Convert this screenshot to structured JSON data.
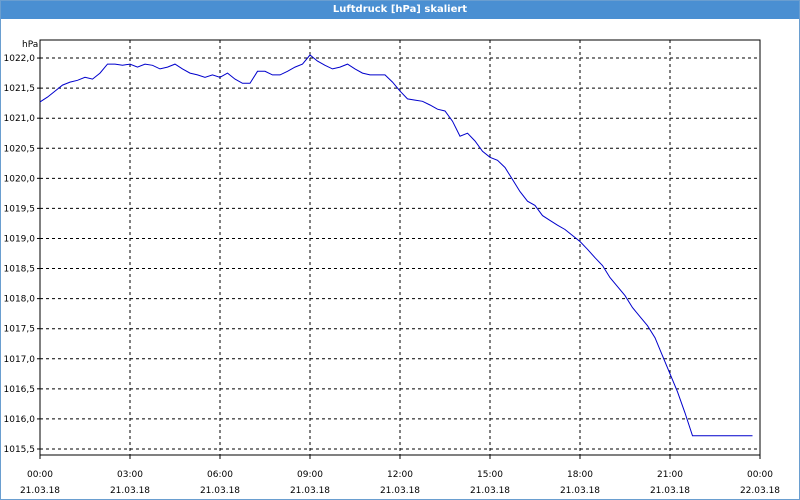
{
  "window": {
    "title": "Luftdruck [hPa] skaliert"
  },
  "colors": {
    "titlebar": "#4a8fd2",
    "line": "#0000cc",
    "grid": "#000000"
  },
  "chart_data": {
    "type": "line",
    "title": "Luftdruck [hPa] skaliert",
    "unit_label": "hPa",
    "ylim": [
      1015.4,
      1022.3
    ],
    "xlim": [
      0,
      24
    ],
    "grid": true,
    "grid_style": "dashed",
    "y_ticks": [
      "1022,0",
      "1021,5",
      "1021,0",
      "1020,5",
      "1020,0",
      "1019,5",
      "1019,0",
      "1018,5",
      "1018,0",
      "1017,5",
      "1017,0",
      "1016,5",
      "1016,0",
      "1015,5"
    ],
    "y_tick_values": [
      1022.0,
      1021.5,
      1021.0,
      1020.5,
      1020.0,
      1019.5,
      1019.0,
      1018.5,
      1018.0,
      1017.5,
      1017.0,
      1016.5,
      1016.0,
      1015.5
    ],
    "x_ticks": [
      {
        "time": "00:00",
        "date": "21.03.18",
        "hour": 0
      },
      {
        "time": "03:00",
        "date": "21.03.18",
        "hour": 3
      },
      {
        "time": "06:00",
        "date": "21.03.18",
        "hour": 6
      },
      {
        "time": "09:00",
        "date": "21.03.18",
        "hour": 9
      },
      {
        "time": "12:00",
        "date": "21.03.18",
        "hour": 12
      },
      {
        "time": "15:00",
        "date": "21.03.18",
        "hour": 15
      },
      {
        "time": "18:00",
        "date": "21.03.18",
        "hour": 18
      },
      {
        "time": "21:00",
        "date": "21.03.18",
        "hour": 21
      },
      {
        "time": "00:00",
        "date": "22.03.18",
        "hour": 24
      }
    ],
    "series": [
      {
        "x": [
          0,
          0.25,
          0.5,
          0.75,
          1.0,
          1.25,
          1.5,
          1.75,
          2.0,
          2.25,
          2.5,
          2.75,
          3.0,
          3.25,
          3.5,
          3.75,
          4.0,
          4.25,
          4.5,
          4.75,
          5.0,
          5.25,
          5.5,
          5.75,
          6.0,
          6.25,
          6.5,
          6.75,
          7.0,
          7.25,
          7.5,
          7.75,
          8.0,
          8.25,
          8.5,
          8.75,
          9.0,
          9.25,
          9.5,
          9.75,
          10.0,
          10.25,
          10.5,
          10.75,
          11.0,
          11.25,
          11.5,
          11.75,
          12.0,
          12.25,
          12.5,
          12.75,
          13.0,
          13.25,
          13.5,
          13.75,
          14.0,
          14.25,
          14.5,
          14.75,
          15.0,
          15.25,
          15.5,
          15.75,
          16.0,
          16.25,
          16.5,
          16.75,
          17.0,
          17.25,
          17.5,
          17.75,
          18.0,
          18.25,
          18.5,
          18.75,
          19.0,
          19.25,
          19.5,
          19.75,
          20.0,
          20.25,
          20.5,
          20.75,
          21.0,
          21.25,
          21.5,
          21.75,
          22.0,
          22.25,
          22.5,
          22.75,
          23.0,
          23.25,
          23.5,
          23.75,
          24.0
        ],
        "values": [
          1021.27,
          1021.35,
          1021.45,
          1021.55,
          1021.6,
          1021.63,
          1021.68,
          1021.65,
          1021.75,
          1021.9,
          1021.9,
          1021.88,
          1021.9,
          1021.85,
          1021.9,
          1021.88,
          1021.82,
          1021.85,
          1021.9,
          1021.82,
          1021.75,
          1021.72,
          1021.68,
          1021.72,
          1021.68,
          1021.75,
          1021.65,
          1021.58,
          1021.58,
          1021.78,
          1021.78,
          1021.72,
          1021.72,
          1021.78,
          1021.85,
          1021.9,
          1022.05,
          1021.95,
          1021.88,
          1021.82,
          1021.85,
          1021.9,
          1021.82,
          1021.75,
          1021.72,
          1021.72,
          1021.72,
          1021.6,
          1021.45,
          1021.32,
          1021.3,
          1021.28,
          1021.22,
          1021.15,
          1021.12,
          1020.95,
          1020.7,
          1020.75,
          1020.62,
          1020.45,
          1020.35,
          1020.3,
          1020.18,
          1019.98,
          1019.78,
          1019.62,
          1019.55,
          1019.38,
          1019.3,
          1019.22,
          1019.15,
          1019.05,
          1018.95,
          1018.82,
          1018.68,
          1018.55,
          1018.35,
          1018.2,
          1018.05,
          1017.85,
          1017.7,
          1017.55,
          1017.35,
          1017.05,
          1016.75,
          1016.45,
          1016.1,
          1015.72,
          1015.72,
          1015.72,
          1015.72,
          1015.72,
          1015.72,
          1015.72,
          1015.72,
          1015.72,
          1015.72
        ]
      }
    ]
  }
}
